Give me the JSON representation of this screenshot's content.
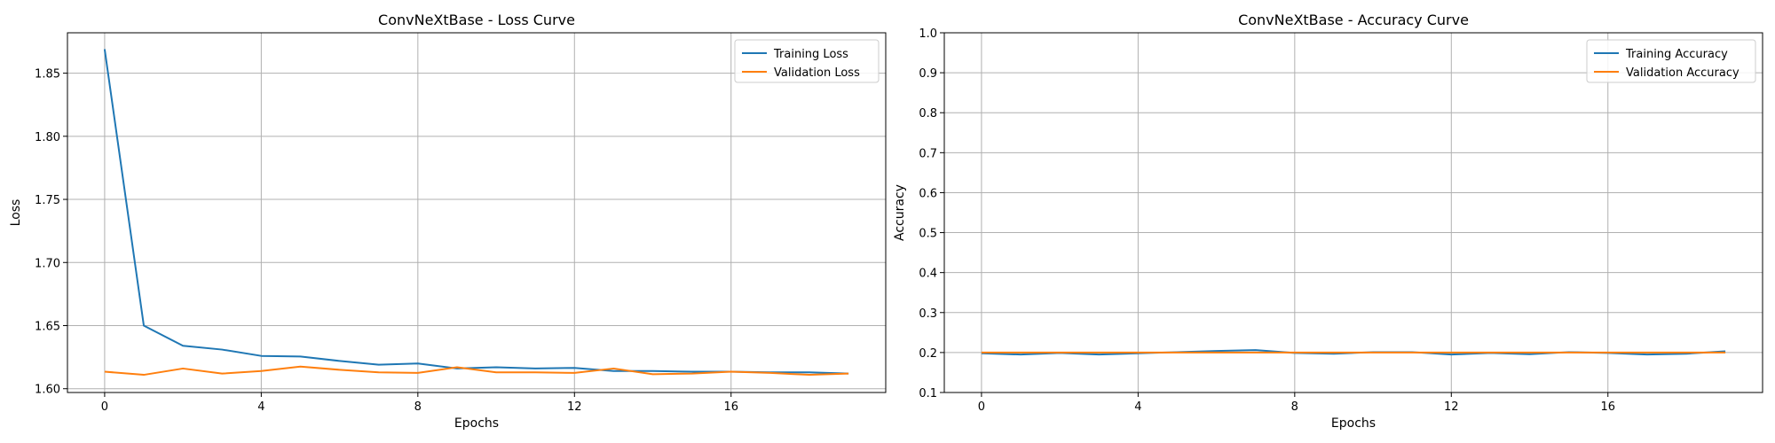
{
  "chart_data": [
    {
      "type": "line",
      "title": "ConvNeXtBase - Loss Curve",
      "xlabel": "Epochs",
      "ylabel": "Loss",
      "x": [
        0,
        1,
        2,
        3,
        4,
        5,
        6,
        7,
        8,
        9,
        10,
        11,
        12,
        13,
        14,
        15,
        16,
        17,
        18,
        19
      ],
      "xticks": [
        "0",
        "4",
        "8",
        "12",
        "16"
      ],
      "xtick_values": [
        0,
        4,
        8,
        12,
        16
      ],
      "yticks": [
        "1.60",
        "1.65",
        "1.70",
        "1.75",
        "1.80",
        "1.85"
      ],
      "ytick_values": [
        1.6,
        1.65,
        1.7,
        1.75,
        1.8,
        1.85
      ],
      "xlim": [
        -0.95,
        19.95
      ],
      "ylim": [
        1.597,
        1.882
      ],
      "grid": true,
      "legend_position": "top-right",
      "series": [
        {
          "name": "Training Loss",
          "color": "#1f77b4",
          "values": [
            1.869,
            1.65,
            1.634,
            1.631,
            1.626,
            1.6255,
            1.622,
            1.619,
            1.62,
            1.616,
            1.617,
            1.616,
            1.6165,
            1.614,
            1.614,
            1.6135,
            1.6135,
            1.613,
            1.613,
            1.612
          ]
        },
        {
          "name": "Validation Loss",
          "color": "#ff7f0e",
          "values": [
            1.6135,
            1.611,
            1.616,
            1.612,
            1.614,
            1.6175,
            1.615,
            1.613,
            1.6125,
            1.617,
            1.613,
            1.613,
            1.6125,
            1.616,
            1.6115,
            1.612,
            1.6135,
            1.6125,
            1.611,
            1.612
          ]
        }
      ]
    },
    {
      "type": "line",
      "title": "ConvNeXtBase - Accuracy Curve",
      "xlabel": "Epochs",
      "ylabel": "Accuracy",
      "x": [
        0,
        1,
        2,
        3,
        4,
        5,
        6,
        7,
        8,
        9,
        10,
        11,
        12,
        13,
        14,
        15,
        16,
        17,
        18,
        19
      ],
      "xticks": [
        "0",
        "4",
        "8",
        "12",
        "16"
      ],
      "xtick_values": [
        0,
        4,
        8,
        12,
        16
      ],
      "yticks": [
        "0.1",
        "0.2",
        "0.3",
        "0.4",
        "0.5",
        "0.6",
        "0.7",
        "0.8",
        "0.9",
        "1.0"
      ],
      "ytick_values": [
        0.1,
        0.2,
        0.3,
        0.4,
        0.5,
        0.6,
        0.7,
        0.8,
        0.9,
        1.0
      ],
      "xlim": [
        -0.95,
        19.95
      ],
      "ylim": [
        0.1,
        1.0
      ],
      "grid": true,
      "legend_position": "top-right",
      "series": [
        {
          "name": "Training Accuracy",
          "color": "#1f77b4",
          "values": [
            0.198,
            0.195,
            0.199,
            0.195,
            0.198,
            0.201,
            0.204,
            0.206,
            0.199,
            0.197,
            0.201,
            0.201,
            0.195,
            0.199,
            0.196,
            0.201,
            0.199,
            0.195,
            0.197,
            0.203
          ]
        },
        {
          "name": "Validation Accuracy",
          "color": "#ff7f0e",
          "values": [
            0.2,
            0.2,
            0.2,
            0.2,
            0.2,
            0.2,
            0.2,
            0.2,
            0.2,
            0.2,
            0.2,
            0.2,
            0.2,
            0.2,
            0.2,
            0.2,
            0.2,
            0.2,
            0.2,
            0.2
          ]
        }
      ]
    }
  ]
}
